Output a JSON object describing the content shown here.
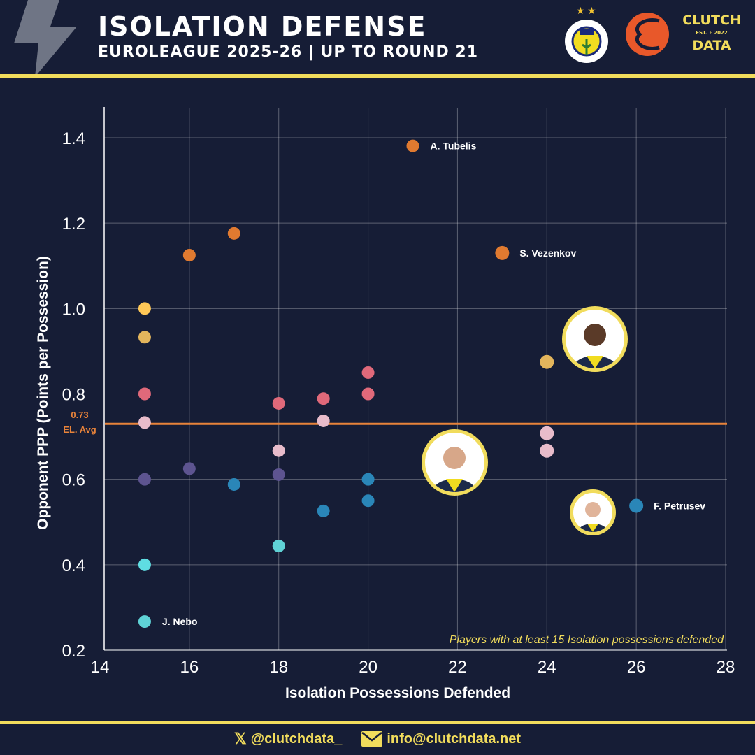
{
  "header": {
    "title": "ISOLATION DEFENSE",
    "subtitle": "EUROLEAGUE 2025-26 | UP TO ROUND 21",
    "logo_clutch_top": "CLUTCH",
    "logo_clutch_mid": "EST. ⚡ 2022",
    "logo_clutch_bottom": "DATA",
    "logo_fb_text": "FENERBAHÇE SPOR KULÜBÜ 1907"
  },
  "footer": {
    "twitter": "@clutchdata_",
    "email": "info@clutchdata.net"
  },
  "colors": {
    "background": "#161d36",
    "accent": "#f1dc5c",
    "avg_line": "#e8833a"
  },
  "chart_data": {
    "type": "scatter",
    "xlabel": "Isolation Possessions Defended",
    "ylabel": "Opponent PPP (Points per Possession)",
    "xlim": [
      14,
      28
    ],
    "ylim": [
      0.2,
      1.4
    ],
    "xticks": [
      14,
      16,
      18,
      20,
      22,
      24,
      26,
      28
    ],
    "yticks": [
      0.2,
      0.4,
      0.6,
      0.8,
      1.0,
      1.2,
      1.4
    ],
    "ytick_labels": [
      "0.2",
      "0.4",
      "0.6",
      "0.8",
      "1.0",
      "1.2",
      "1.4"
    ],
    "grid": true,
    "reference_line": {
      "value": 0.73,
      "label_value": "0.73",
      "label": "EL. Avg",
      "color": "#e8833a"
    },
    "note": "Players with at least 15 Isolation possessions defended",
    "points": [
      {
        "x": 15,
        "y": 1.0,
        "color": "#ffc857"
      },
      {
        "x": 15,
        "y": 0.933,
        "color": "#e3b55c"
      },
      {
        "x": 15,
        "y": 0.8,
        "color": "#e0697a"
      },
      {
        "x": 15,
        "y": 0.733,
        "color": "#e8bccb"
      },
      {
        "x": 15,
        "y": 0.6,
        "color": "#5d5490"
      },
      {
        "x": 15,
        "y": 0.4,
        "color": "#5fdde2"
      },
      {
        "x": 15,
        "y": 0.267,
        "color": "#5fd2d6",
        "label": "J. Nebo"
      },
      {
        "x": 16,
        "y": 1.125,
        "color": "#e07a30"
      },
      {
        "x": 16,
        "y": 0.625,
        "color": "#5d5490"
      },
      {
        "x": 17,
        "y": 1.176,
        "color": "#e07a30"
      },
      {
        "x": 17,
        "y": 0.588,
        "color": "#2a86b8"
      },
      {
        "x": 18,
        "y": 0.778,
        "color": "#e0697a"
      },
      {
        "x": 18,
        "y": 0.667,
        "color": "#e8bccb"
      },
      {
        "x": 18,
        "y": 0.611,
        "color": "#5d5490"
      },
      {
        "x": 18,
        "y": 0.444,
        "color": "#5fd2d6"
      },
      {
        "x": 19,
        "y": 0.789,
        "color": "#e0697a"
      },
      {
        "x": 19,
        "y": 0.737,
        "color": "#e8bccb"
      },
      {
        "x": 19,
        "y": 0.526,
        "color": "#2a86b8"
      },
      {
        "x": 20,
        "y": 0.85,
        "color": "#e0697a"
      },
      {
        "x": 20,
        "y": 0.8,
        "color": "#e0697a"
      },
      {
        "x": 20,
        "y": 0.6,
        "color": "#2a86b8"
      },
      {
        "x": 20,
        "y": 0.55,
        "color": "#2a86b8"
      },
      {
        "x": 21,
        "y": 1.381,
        "color": "#e07a30",
        "label": "A. Tubelis"
      },
      {
        "x": 23,
        "y": 1.13,
        "color": "#e07a30",
        "label": "S. Vezenkov"
      },
      {
        "x": 24,
        "y": 0.875,
        "color": "#e3b55c"
      },
      {
        "x": 24,
        "y": 0.708,
        "color": "#e8bccb"
      },
      {
        "x": 24,
        "y": 0.667,
        "color": "#e8bccb"
      },
      {
        "x": 26,
        "y": 0.538,
        "color": "#2a86b8",
        "label": "F. Petrusev"
      }
    ]
  }
}
